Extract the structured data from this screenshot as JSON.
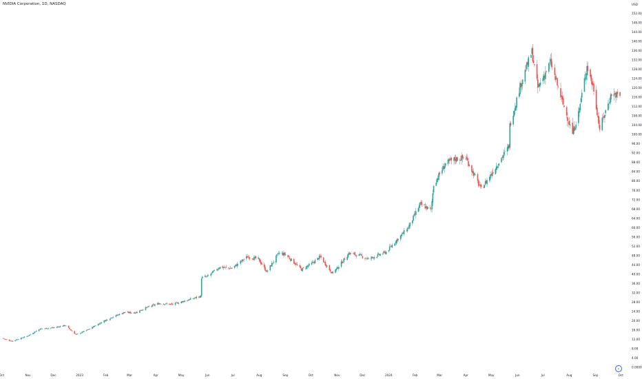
{
  "header": {
    "symbol_title": "NVIDIA Corporation, 1D, NASDAQ"
  },
  "price_axis": {
    "currency": "USD"
  },
  "colors": {
    "up": "#26a69a",
    "down": "#ef5350",
    "background": "#ffffff",
    "axis_text": "#131722"
  },
  "controls": {
    "scroll_to_realtime_icon": "chevron-down-circle-icon"
  },
  "chart_data": {
    "type": "candlestick",
    "title": "NVIDIA Corporation, 1D, NASDAQ",
    "xlabel": "",
    "ylabel": "USD",
    "ylim": [
      0.0,
      152.0
    ],
    "y_ticks": [
      "152.00",
      "148.00",
      "144.00",
      "140.00",
      "136.00",
      "132.00",
      "128.00",
      "124.00",
      "120.00",
      "116.00",
      "112.00",
      "108.00",
      "104.00",
      "100.00",
      "96.00",
      "92.00",
      "88.00",
      "84.00",
      "80.00",
      "76.00",
      "72.00",
      "68.00",
      "64.00",
      "60.00",
      "56.00",
      "52.00",
      "48.00",
      "44.00",
      "40.00",
      "36.00",
      "32.00",
      "28.00",
      "24.00",
      "20.00",
      "16.00",
      "12.00",
      "8.00",
      "4.00",
      "0.0000"
    ],
    "x_ticks": [
      {
        "label": "Oct",
        "date": "2022-10-01"
      },
      {
        "label": "Nov",
        "date": "2022-11-01"
      },
      {
        "label": "Dec",
        "date": "2022-12-01"
      },
      {
        "label": "2023",
        "date": "2023-01-01"
      },
      {
        "label": "Feb",
        "date": "2023-02-01"
      },
      {
        "label": "Mar",
        "date": "2023-03-01"
      },
      {
        "label": "Apr",
        "date": "2023-04-01"
      },
      {
        "label": "May",
        "date": "2023-05-01"
      },
      {
        "label": "Jun",
        "date": "2023-06-01"
      },
      {
        "label": "Jul",
        "date": "2023-07-01"
      },
      {
        "label": "Aug",
        "date": "2023-08-01"
      },
      {
        "label": "Sep",
        "date": "2023-09-01"
      },
      {
        "label": "Oct",
        "date": "2023-10-01"
      },
      {
        "label": "Nov",
        "date": "2023-11-01"
      },
      {
        "label": "Dec",
        "date": "2023-12-01"
      },
      {
        "label": "2024",
        "date": "2024-01-01"
      },
      {
        "label": "Feb",
        "date": "2024-02-01"
      },
      {
        "label": "Mar",
        "date": "2024-03-01"
      },
      {
        "label": "Apr",
        "date": "2024-04-01"
      },
      {
        "label": "May",
        "date": "2024-05-01"
      },
      {
        "label": "Jun",
        "date": "2024-06-01"
      },
      {
        "label": "Jul",
        "date": "2024-07-01"
      },
      {
        "label": "Aug",
        "date": "2024-08-01"
      },
      {
        "label": "Sep",
        "date": "2024-09-01"
      },
      {
        "label": "Oct",
        "date": "2024-10-01"
      }
    ],
    "grid": false,
    "series": [
      {
        "close_path": [
          {
            "date": "2022-10-01",
            "close": 12.5
          },
          {
            "date": "2022-10-13",
            "close": 11.2
          },
          {
            "date": "2022-11-01",
            "close": 13.5
          },
          {
            "date": "2022-11-15",
            "close": 16.5
          },
          {
            "date": "2022-12-01",
            "close": 17.0
          },
          {
            "date": "2022-12-15",
            "close": 18.0
          },
          {
            "date": "2022-12-28",
            "close": 14.0
          },
          {
            "date": "2023-01-10",
            "close": 16.0
          },
          {
            "date": "2023-01-25",
            "close": 19.0
          },
          {
            "date": "2023-02-08",
            "close": 21.5
          },
          {
            "date": "2023-02-22",
            "close": 23.5
          },
          {
            "date": "2023-03-08",
            "close": 23.5
          },
          {
            "date": "2023-03-20",
            "close": 25.5
          },
          {
            "date": "2023-04-05",
            "close": 27.5
          },
          {
            "date": "2023-04-20",
            "close": 27.0
          },
          {
            "date": "2023-05-05",
            "close": 28.5
          },
          {
            "date": "2023-05-24",
            "close": 30.5
          },
          {
            "date": "2023-05-25",
            "close": 38.5
          },
          {
            "date": "2023-06-01",
            "close": 39.0
          },
          {
            "date": "2023-06-15",
            "close": 43.0
          },
          {
            "date": "2023-06-30",
            "close": 42.5
          },
          {
            "date": "2023-07-18",
            "close": 47.5
          },
          {
            "date": "2023-07-31",
            "close": 46.5
          },
          {
            "date": "2023-08-10",
            "close": 41.0
          },
          {
            "date": "2023-08-24",
            "close": 49.0
          },
          {
            "date": "2023-09-01",
            "close": 48.5
          },
          {
            "date": "2023-09-20",
            "close": 42.0
          },
          {
            "date": "2023-10-02",
            "close": 44.5
          },
          {
            "date": "2023-10-12",
            "close": 47.5
          },
          {
            "date": "2023-10-26",
            "close": 40.5
          },
          {
            "date": "2023-11-01",
            "close": 42.5
          },
          {
            "date": "2023-11-15",
            "close": 49.0
          },
          {
            "date": "2023-11-28",
            "close": 48.0
          },
          {
            "date": "2023-12-08",
            "close": 46.5
          },
          {
            "date": "2023-12-29",
            "close": 49.5
          },
          {
            "date": "2024-01-10",
            "close": 54.5
          },
          {
            "date": "2024-01-24",
            "close": 60.0
          },
          {
            "date": "2024-02-07",
            "close": 70.0
          },
          {
            "date": "2024-02-20",
            "close": 67.5
          },
          {
            "date": "2024-02-23",
            "close": 78.5
          },
          {
            "date": "2024-03-08",
            "close": 87.5
          },
          {
            "date": "2024-03-20",
            "close": 89.5
          },
          {
            "date": "2024-04-01",
            "close": 90.0
          },
          {
            "date": "2024-04-19",
            "close": 76.5
          },
          {
            "date": "2024-05-01",
            "close": 83.0
          },
          {
            "date": "2024-05-22",
            "close": 95.0
          },
          {
            "date": "2024-05-23",
            "close": 104.0
          },
          {
            "date": "2024-06-05",
            "close": 122.0
          },
          {
            "date": "2024-06-18",
            "close": 135.5
          },
          {
            "date": "2024-06-25",
            "close": 120.0
          },
          {
            "date": "2024-07-10",
            "close": 131.0
          },
          {
            "date": "2024-07-24",
            "close": 114.0
          },
          {
            "date": "2024-08-05",
            "close": 100.5
          },
          {
            "date": "2024-08-12",
            "close": 109.0
          },
          {
            "date": "2024-08-22",
            "close": 129.5
          },
          {
            "date": "2024-08-30",
            "close": 119.5
          },
          {
            "date": "2024-09-06",
            "close": 102.5
          },
          {
            "date": "2024-09-20",
            "close": 117.5
          },
          {
            "date": "2024-09-30",
            "close": 116.5
          }
        ]
      }
    ]
  }
}
